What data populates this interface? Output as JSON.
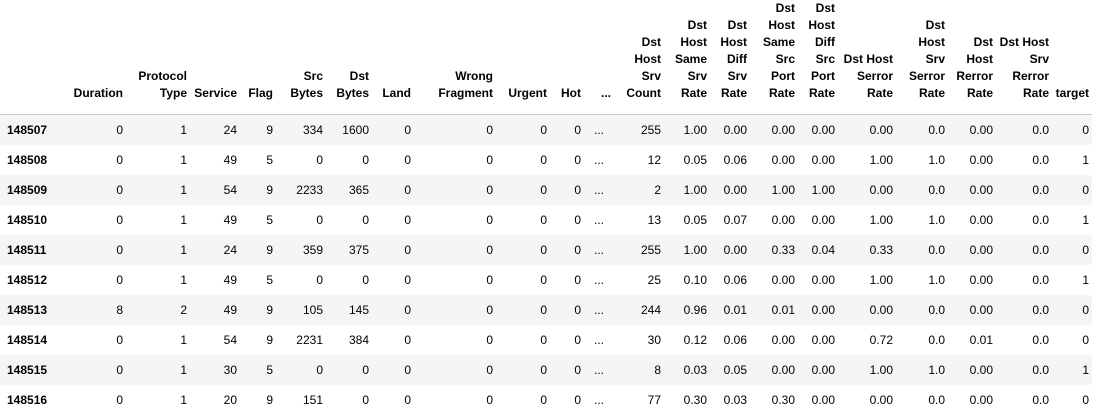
{
  "columns": [
    {
      "key": "Duration",
      "label": "Duration"
    },
    {
      "key": "Protocol Type",
      "label": "Protocol Type"
    },
    {
      "key": "Service",
      "label": "Service"
    },
    {
      "key": "Flag",
      "label": "Flag"
    },
    {
      "key": "Src Bytes",
      "label": "Src Bytes"
    },
    {
      "key": "Dst Bytes",
      "label": "Dst Bytes"
    },
    {
      "key": "Land",
      "label": "Land"
    },
    {
      "key": "Wrong Fragment",
      "label": "Wrong Fragment"
    },
    {
      "key": "Urgent",
      "label": "Urgent"
    },
    {
      "key": "Hot",
      "label": "Hot"
    },
    {
      "key": "...",
      "label": "..."
    },
    {
      "key": "Dst Host Srv Count",
      "label": "Dst Host Srv Count"
    },
    {
      "key": "Dst Host Same Srv Rate",
      "label": "Dst Host Same Srv Rate"
    },
    {
      "key": "Dst Host Diff Srv Rate",
      "label": "Dst Host Diff Srv Rate"
    },
    {
      "key": "Dst Host Same Src Port Rate",
      "label": "Dst Host Same Src Port Rate"
    },
    {
      "key": "Dst Host Diff Src Port Rate",
      "label": "Dst Host Diff Src Port Rate"
    },
    {
      "key": "Dst Host Serror Rate",
      "label": "Dst Host Serror Rate"
    },
    {
      "key": "Dst Host Srv Serror Rate",
      "label": "Dst Host Srv Serror Rate"
    },
    {
      "key": "Dst Host Rerror Rate",
      "label": "Dst Host Rerror Rate"
    },
    {
      "key": "Dst Host Srv Rerror Rate",
      "label": "Dst Host Srv Rerror Rate"
    },
    {
      "key": "target",
      "label": "target"
    }
  ],
  "rows": [
    {
      "index": "148507",
      "cells": [
        "0",
        "1",
        "24",
        "9",
        "334",
        "1600",
        "0",
        "0",
        "0",
        "0",
        "...",
        "255",
        "1.00",
        "0.00",
        "0.00",
        "0.00",
        "0.00",
        "0.0",
        "0.00",
        "0.0",
        "0"
      ]
    },
    {
      "index": "148508",
      "cells": [
        "0",
        "1",
        "49",
        "5",
        "0",
        "0",
        "0",
        "0",
        "0",
        "0",
        "...",
        "12",
        "0.05",
        "0.06",
        "0.00",
        "0.00",
        "1.00",
        "1.0",
        "0.00",
        "0.0",
        "1"
      ]
    },
    {
      "index": "148509",
      "cells": [
        "0",
        "1",
        "54",
        "9",
        "2233",
        "365",
        "0",
        "0",
        "0",
        "0",
        "...",
        "2",
        "1.00",
        "0.00",
        "1.00",
        "1.00",
        "0.00",
        "0.0",
        "0.00",
        "0.0",
        "0"
      ]
    },
    {
      "index": "148510",
      "cells": [
        "0",
        "1",
        "49",
        "5",
        "0",
        "0",
        "0",
        "0",
        "0",
        "0",
        "...",
        "13",
        "0.05",
        "0.07",
        "0.00",
        "0.00",
        "1.00",
        "1.0",
        "0.00",
        "0.0",
        "1"
      ]
    },
    {
      "index": "148511",
      "cells": [
        "0",
        "1",
        "24",
        "9",
        "359",
        "375",
        "0",
        "0",
        "0",
        "0",
        "...",
        "255",
        "1.00",
        "0.00",
        "0.33",
        "0.04",
        "0.33",
        "0.0",
        "0.00",
        "0.0",
        "0"
      ]
    },
    {
      "index": "148512",
      "cells": [
        "0",
        "1",
        "49",
        "5",
        "0",
        "0",
        "0",
        "0",
        "0",
        "0",
        "...",
        "25",
        "0.10",
        "0.06",
        "0.00",
        "0.00",
        "1.00",
        "1.0",
        "0.00",
        "0.0",
        "1"
      ]
    },
    {
      "index": "148513",
      "cells": [
        "8",
        "2",
        "49",
        "9",
        "105",
        "145",
        "0",
        "0",
        "0",
        "0",
        "...",
        "244",
        "0.96",
        "0.01",
        "0.01",
        "0.00",
        "0.00",
        "0.0",
        "0.00",
        "0.0",
        "0"
      ]
    },
    {
      "index": "148514",
      "cells": [
        "0",
        "1",
        "54",
        "9",
        "2231",
        "384",
        "0",
        "0",
        "0",
        "0",
        "...",
        "30",
        "0.12",
        "0.06",
        "0.00",
        "0.00",
        "0.72",
        "0.0",
        "0.01",
        "0.0",
        "0"
      ]
    },
    {
      "index": "148515",
      "cells": [
        "0",
        "1",
        "30",
        "5",
        "0",
        "0",
        "0",
        "0",
        "0",
        "0",
        "...",
        "8",
        "0.03",
        "0.05",
        "0.00",
        "0.00",
        "1.00",
        "1.0",
        "0.00",
        "0.0",
        "1"
      ]
    },
    {
      "index": "148516",
      "cells": [
        "0",
        "1",
        "20",
        "9",
        "151",
        "0",
        "0",
        "0",
        "0",
        "0",
        "...",
        "77",
        "0.30",
        "0.03",
        "0.30",
        "0.00",
        "0.00",
        "0.0",
        "0.00",
        "0.0",
        "0"
      ]
    }
  ],
  "colors": {
    "stripe": "#f5f5f5",
    "header_rule": "#c9c9c9",
    "text": "#000000"
  }
}
